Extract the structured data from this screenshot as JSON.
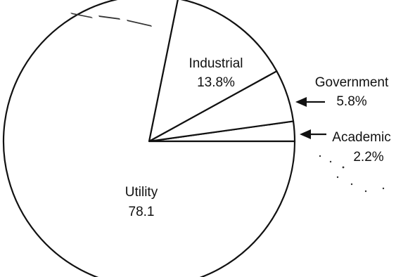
{
  "chart_data": {
    "type": "pie",
    "title": "",
    "slices": [
      {
        "label": "Utility",
        "value": 78.1,
        "value_label": "78.1"
      },
      {
        "label": "Industrial",
        "value": 13.8,
        "value_label": "13.8%"
      },
      {
        "label": "Government",
        "value": 5.8,
        "value_label": "5.8%"
      },
      {
        "label": "Academic",
        "value": 2.2,
        "value_label": "2.2%"
      }
    ],
    "start_angle_deg": 0,
    "direction": "counterclockwise",
    "legend": "none",
    "external_labels": [
      "Government",
      "Academic"
    ],
    "colors": {
      "fill": "#ffffff",
      "stroke": "#111111",
      "text": "#111111"
    }
  }
}
